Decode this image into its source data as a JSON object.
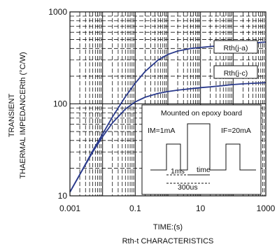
{
  "chart_data": {
    "type": "line",
    "title": "Rth-t CHARACTERISTICS",
    "xlabel": "TIME:(s)",
    "ylabel_line1": "TRANSIENT",
    "ylabel_line2": "THAERMAL IMPEDANCERth (°C/W)",
    "x_scale": "log",
    "y_scale": "log",
    "xlim": [
      0.001,
      1000
    ],
    "ylim": [
      10,
      1000
    ],
    "x_ticks": [
      {
        "value": 0.001,
        "label": "0.001"
      },
      {
        "value": 0.1,
        "label": "0.1"
      },
      {
        "value": 10,
        "label": "10"
      },
      {
        "value": 1000,
        "label": "1000"
      }
    ],
    "y_ticks": [
      {
        "value": 10,
        "label": "10"
      },
      {
        "value": 100,
        "label": "100"
      },
      {
        "value": 1000,
        "label": "1000"
      }
    ],
    "grid": true,
    "series": [
      {
        "name": "Rth(j-a)",
        "x": [
          0.001,
          0.002,
          0.005,
          0.01,
          0.02,
          0.05,
          0.1,
          0.2,
          0.5,
          1,
          2,
          5,
          10,
          20,
          50,
          100,
          200,
          500,
          1000
        ],
        "y": [
          11,
          17,
          31,
          47,
          72,
          120,
          168,
          225,
          300,
          345,
          375,
          400,
          410,
          420,
          432,
          440,
          450,
          460,
          470
        ]
      },
      {
        "name": "Rth(j-c)",
        "x": [
          0.001,
          0.002,
          0.005,
          0.01,
          0.02,
          0.05,
          0.1,
          0.2,
          0.5,
          1,
          2,
          5,
          10,
          20,
          50,
          100,
          200,
          500,
          1000
        ],
        "y": [
          11,
          17,
          30,
          44,
          62,
          88,
          105,
          118,
          130,
          136,
          141,
          146,
          150,
          153,
          158,
          162,
          165,
          168,
          170
        ]
      }
    ],
    "inset": {
      "title": "Mounted on epoxy board",
      "im_label": "IM=1mA",
      "if_label": "IF=20mA",
      "t1_label": "1ms",
      "time_label": "time",
      "t2_label": "300us"
    }
  }
}
